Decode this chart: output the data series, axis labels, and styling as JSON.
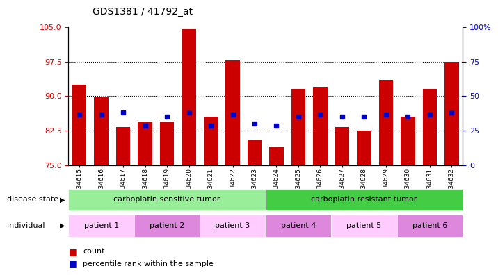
{
  "title": "GDS1381 / 41792_at",
  "samples": [
    "GSM34615",
    "GSM34616",
    "GSM34617",
    "GSM34618",
    "GSM34619",
    "GSM34620",
    "GSM34621",
    "GSM34622",
    "GSM34623",
    "GSM34624",
    "GSM34625",
    "GSM34626",
    "GSM34627",
    "GSM34628",
    "GSM34629",
    "GSM34630",
    "GSM34631",
    "GSM34632"
  ],
  "bar_heights": [
    92.5,
    89.8,
    83.2,
    84.5,
    84.5,
    104.5,
    85.5,
    97.8,
    80.5,
    79.0,
    91.5,
    92.0,
    83.2,
    82.5,
    93.5,
    85.5,
    91.5,
    97.5
  ],
  "blue_values": [
    86.0,
    86.0,
    86.5,
    83.5,
    85.5,
    86.5,
    83.5,
    86.0,
    84.0,
    83.5,
    85.5,
    86.0,
    85.5,
    85.5,
    86.0,
    85.5,
    86.0,
    86.5
  ],
  "bar_color": "#cc0000",
  "blue_color": "#0000cc",
  "ymin": 75,
  "ymax": 105,
  "yticks": [
    75,
    82.5,
    90,
    97.5,
    105
  ],
  "hlines": [
    82.5,
    90,
    97.5
  ],
  "disease_state_groups": [
    {
      "label": "carboplatin sensitive tumor",
      "start": 0,
      "end": 9,
      "color": "#99ee99"
    },
    {
      "label": "carboplatin resistant tumor",
      "start": 9,
      "end": 18,
      "color": "#44cc44"
    }
  ],
  "patient_groups": [
    {
      "label": "patient 1",
      "start": 0,
      "end": 3,
      "color": "#ffccff"
    },
    {
      "label": "patient 2",
      "start": 3,
      "end": 6,
      "color": "#dd88dd"
    },
    {
      "label": "patient 3",
      "start": 6,
      "end": 9,
      "color": "#ffccff"
    },
    {
      "label": "patient 4",
      "start": 9,
      "end": 12,
      "color": "#dd88dd"
    },
    {
      "label": "patient 5",
      "start": 12,
      "end": 15,
      "color": "#ffccff"
    },
    {
      "label": "patient 6",
      "start": 15,
      "end": 18,
      "color": "#dd88dd"
    }
  ],
  "left_label_color": "#cc0000",
  "right_label_color": "#0000cc",
  "bg_color": "#ffffff",
  "bar_width": 0.65
}
